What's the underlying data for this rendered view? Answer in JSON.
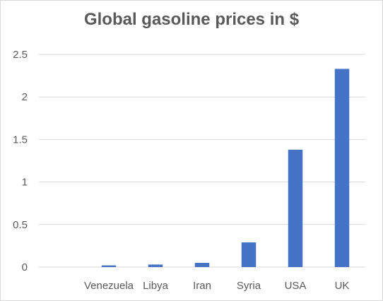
{
  "chart_data": {
    "type": "bar",
    "title": "Global gasoline prices in $",
    "categories": [
      "Venezuela",
      "Libya",
      "Iran",
      "Syria",
      "USA",
      "UK"
    ],
    "values": [
      0.02,
      0.03,
      0.05,
      0.29,
      1.38,
      2.33
    ],
    "yticks": [
      "0",
      "0.5",
      "1",
      "1.5",
      "2",
      "2.5"
    ],
    "ylim": [
      0,
      2.5
    ],
    "xlabel": "",
    "ylabel": "",
    "grid": true,
    "legend": "none",
    "colors": {
      "bar": "#4472c4",
      "grid": "#d9d9d9",
      "text": "#595959"
    }
  }
}
